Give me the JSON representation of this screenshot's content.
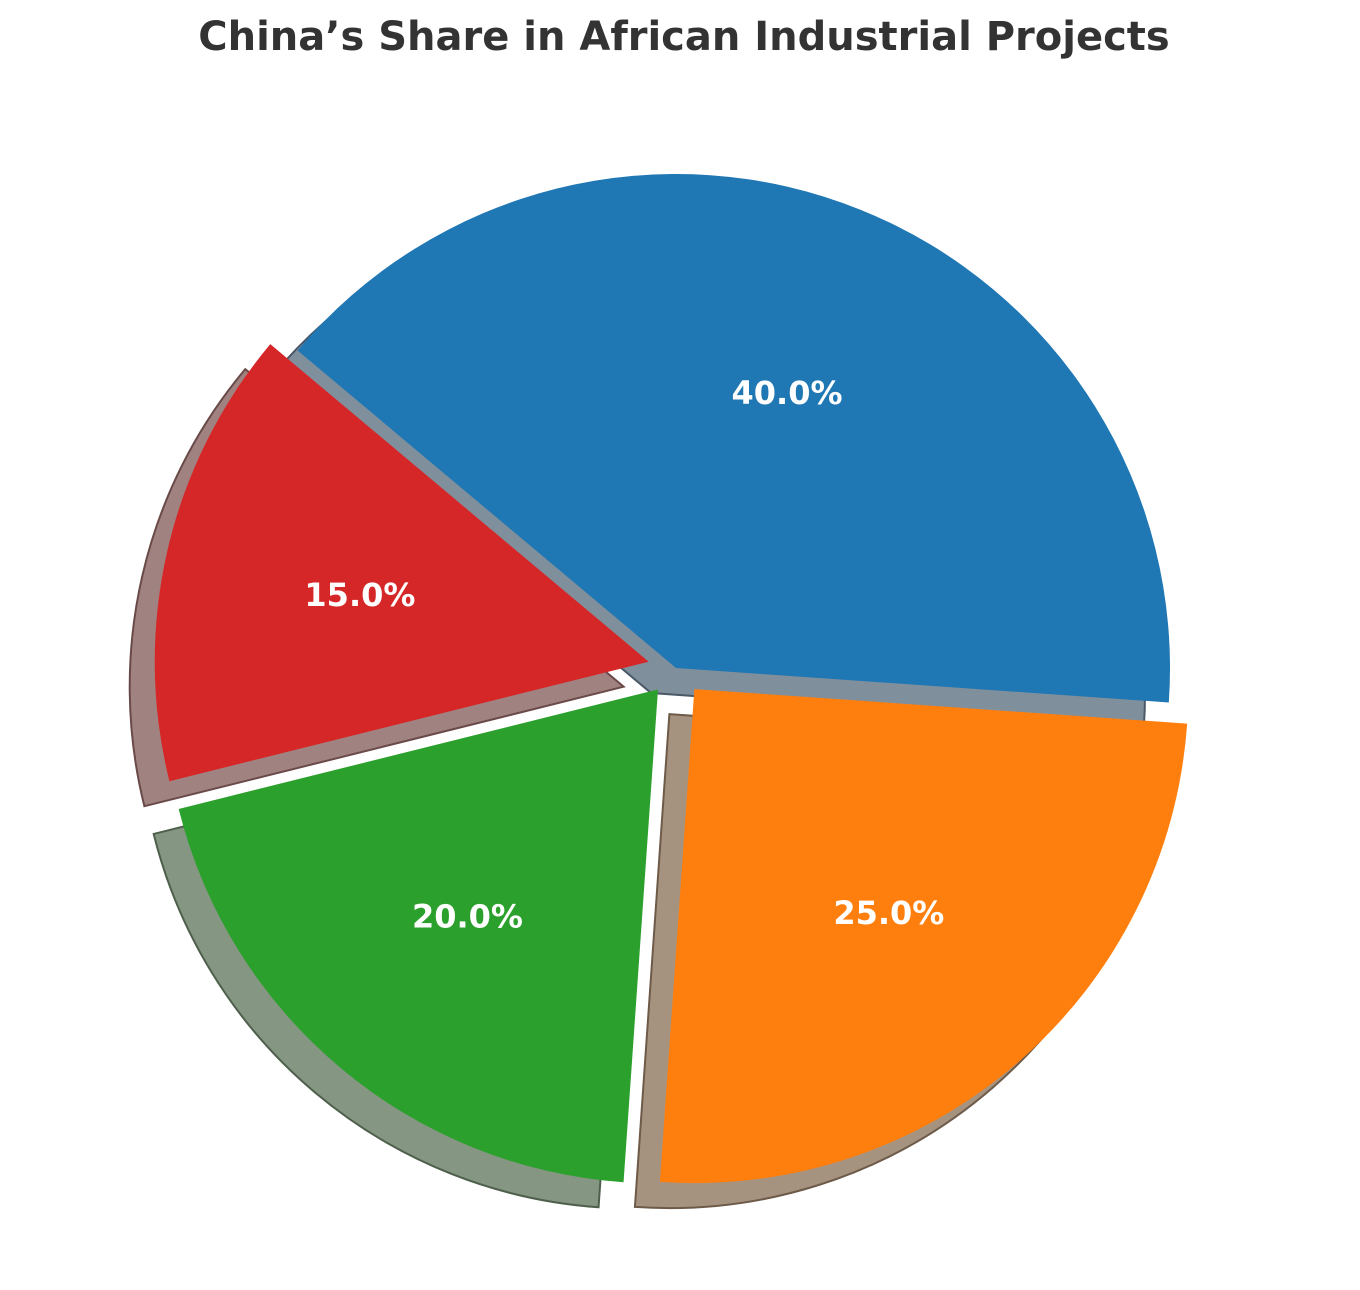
{
  "chart_data": {
    "type": "pie",
    "title": "China’s Share in African Industrial Projects",
    "labels": [
      "",
      "",
      "",
      ""
    ],
    "values": [
      40,
      25,
      20,
      15
    ],
    "value_labels": [
      "40.0%",
      "25.0%",
      "20.0%",
      "15.0%"
    ],
    "colors": [
      "#1f77b4",
      "#ff7f0e",
      "#2ca02c",
      "#d62728"
    ],
    "start_angle_deg": 140,
    "direction": "clockwise",
    "exploded": [
      false,
      true,
      true,
      true
    ],
    "shadow": true
  }
}
